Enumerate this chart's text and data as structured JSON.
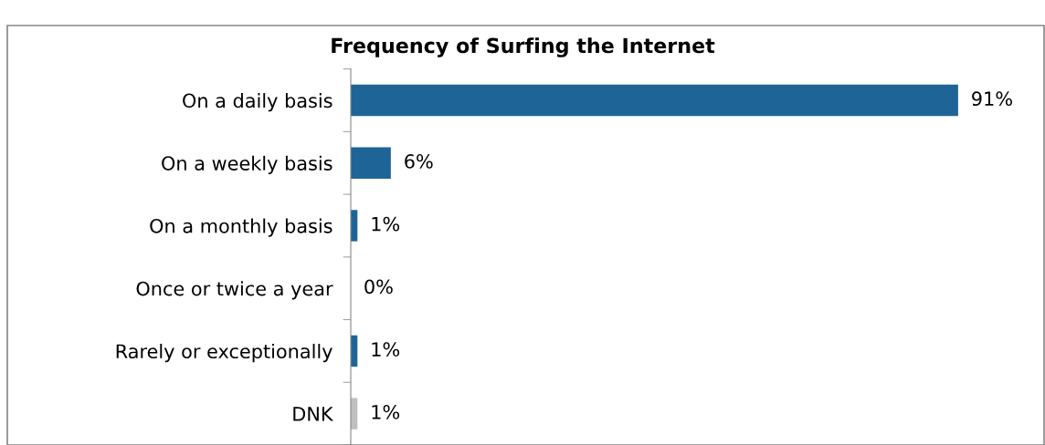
{
  "chart_data": {
    "type": "bar",
    "orientation": "horizontal",
    "title": "Frequency of Surfing the Internet",
    "categories": [
      "On a daily basis",
      "On a weekly basis",
      "On a monthly basis",
      "Once or twice a year",
      "Rarely or exceptionally",
      "DNK"
    ],
    "values": [
      91,
      6,
      1,
      0,
      1,
      1
    ],
    "colors": [
      "#1f6496",
      "#1f6496",
      "#1f6496",
      "#1f6496",
      "#1f6496",
      "#bfbfbf"
    ],
    "value_labels": [
      "91%",
      "6%",
      "1%",
      "0%",
      "1%",
      "1%"
    ],
    "grid": false,
    "legend": false
  }
}
